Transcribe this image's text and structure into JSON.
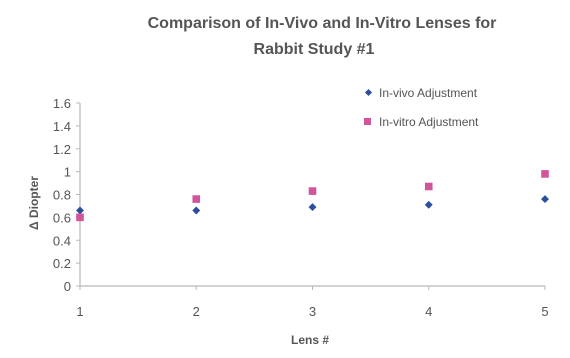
{
  "chart_data": {
    "type": "scatter",
    "title_lines": [
      "Comparison of In-Vivo and In-Vitro Lenses for",
      "Rabbit Study #1"
    ],
    "xlabel": "Lens #",
    "ylabel": "Δ Diopter",
    "x": [
      1,
      2,
      3,
      4,
      5
    ],
    "xlim": [
      1,
      5
    ],
    "ylim": [
      0,
      1.6
    ],
    "y_ticks": [
      "0",
      "0.2",
      "0.4",
      "0.6",
      "0.8",
      "1",
      "1.2",
      "1.4",
      "1.6"
    ],
    "x_ticks": [
      "1",
      "2",
      "3",
      "4",
      "5"
    ],
    "grid": false,
    "legend_position": "top-right",
    "series": [
      {
        "name": "In-vivo Adjustment",
        "marker": "diamond",
        "color": "#2b4f9e",
        "values": [
          0.66,
          0.66,
          0.69,
          0.71,
          0.76
        ]
      },
      {
        "name": "In-vitro Adjustment",
        "marker": "square",
        "color": "#d1559a",
        "values": [
          0.6,
          0.76,
          0.83,
          0.87,
          0.98
        ]
      }
    ]
  }
}
